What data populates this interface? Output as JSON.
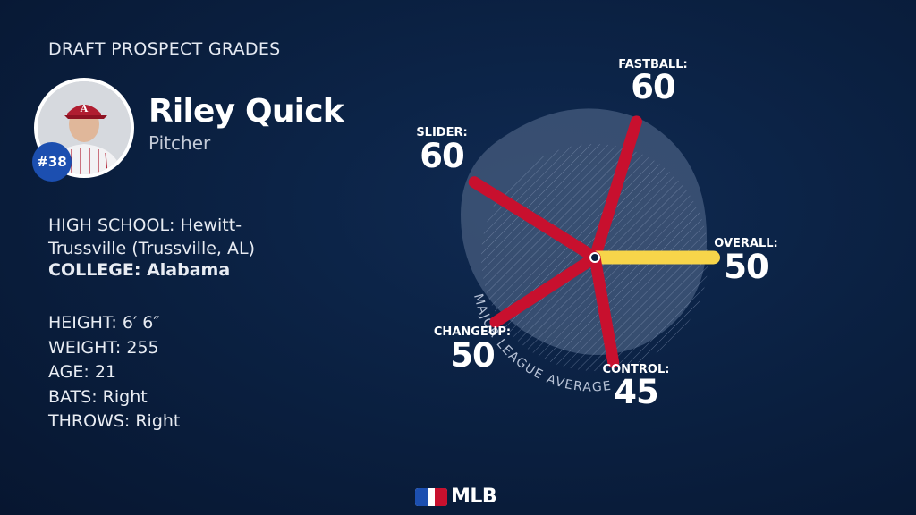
{
  "header": {
    "title": "DRAFT PROSPECT GRADES"
  },
  "player": {
    "rank": "#38",
    "name": "Riley Quick",
    "position": "Pitcher"
  },
  "bio": {
    "high_school_label": "HIGH SCHOOL:",
    "high_school_value": "Hewitt-Trussville (Trussville, AL)",
    "college_label": "COLLEGE:",
    "college_value": "Alabama",
    "height": "HEIGHT: 6′ 6″",
    "weight": "WEIGHT: 255",
    "age": "AGE: 21",
    "bats": "BATS: Right",
    "throws": "THROWS: Right"
  },
  "chart_data": {
    "type": "radar",
    "title": "DRAFT PROSPECT GRADES",
    "reference_label": "MAJOR LEAGUE AVERAGE",
    "reference_value": 50,
    "scale_max": 80,
    "axes": [
      {
        "name": "FASTBALL:",
        "value": 60,
        "color": "#c8102e"
      },
      {
        "name": "OVERALL:",
        "value": 50,
        "color": "#f7d54a"
      },
      {
        "name": "CONTROL:",
        "value": 45,
        "color": "#c8102e"
      },
      {
        "name": "CHANGEUP:",
        "value": 50,
        "color": "#c8102e"
      },
      {
        "name": "SLIDER:",
        "value": 60,
        "color": "#c8102e"
      }
    ]
  },
  "colors": {
    "background": "#0a1f3f",
    "tool_red": "#c8102e",
    "overall_yellow": "#f7d54a",
    "rank_badge": "#1c4fb0"
  },
  "footer": {
    "logo_text": "MLB"
  }
}
